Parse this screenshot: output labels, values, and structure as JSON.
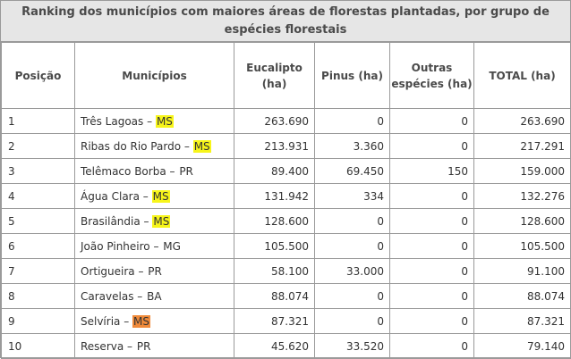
{
  "table": {
    "caption_line1": "Ranking dos municípios com maiores áreas de florestas plantadas, por grupo de",
    "caption_line2": "espécies florestais",
    "headers": {
      "posicao": "Posição",
      "municipios": "Municípios",
      "eucalipto": "Eucalipto (ha)",
      "pinus": "Pinus (ha)",
      "outras": "Outras espécies (ha)",
      "total": "TOTAL (ha)"
    },
    "highlight_colors": {
      "yellow": "#f7f51a",
      "orange": "#f08a3a"
    },
    "rows": [
      {
        "pos": "1",
        "city": "Três Lagoas",
        "sep": " – ",
        "uf": "MS",
        "highlight": "yellow",
        "eucalipto": "263.690",
        "pinus": "0",
        "outras": "0",
        "total": "263.690"
      },
      {
        "pos": "2",
        "city": "Ribas do Rio Pardo",
        "sep": " – ",
        "uf": "MS",
        "highlight": "yellow",
        "eucalipto": "213.931",
        "pinus": "3.360",
        "outras": "0",
        "total": "217.291"
      },
      {
        "pos": "3",
        "city": "Telêmaco Borba",
        "sep": " – ",
        "uf": "PR",
        "highlight": "none",
        "eucalipto": "89.400",
        "pinus": "69.450",
        "outras": "150",
        "total": "159.000"
      },
      {
        "pos": "4",
        "city": "Água Clara",
        "sep": " – ",
        "uf": "MS",
        "highlight": "yellow",
        "eucalipto": "131.942",
        "pinus": "334",
        "outras": "0",
        "total": "132.276"
      },
      {
        "pos": "5",
        "city": "Brasilândia",
        "sep": " – ",
        "uf": "MS",
        "highlight": "yellow",
        "eucalipto": "128.600",
        "pinus": "0",
        "outras": "0",
        "total": "128.600"
      },
      {
        "pos": "6",
        "city": "João Pinheiro",
        "sep": " – ",
        "uf": "MG",
        "highlight": "none",
        "eucalipto": "105.500",
        "pinus": "0",
        "outras": "0",
        "total": "105.500"
      },
      {
        "pos": "7",
        "city": "Ortigueira",
        "sep": " – ",
        "uf": "PR",
        "highlight": "none",
        "eucalipto": "58.100",
        "pinus": "33.000",
        "outras": "0",
        "total": "91.100"
      },
      {
        "pos": "8",
        "city": "Caravelas",
        "sep": " – ",
        "uf": "BA",
        "highlight": "none",
        "eucalipto": "88.074",
        "pinus": "0",
        "outras": "0",
        "total": "88.074"
      },
      {
        "pos": "9",
        "city": "Selvíria",
        "sep": " – ",
        "uf": "MS",
        "highlight": "orange",
        "eucalipto": "87.321",
        "pinus": "0",
        "outras": "0",
        "total": "87.321"
      },
      {
        "pos": "10",
        "city": "Reserva",
        "sep": " – ",
        "uf": "PR",
        "highlight": "none",
        "eucalipto": "45.620",
        "pinus": "33.520",
        "outras": "0",
        "total": "79.140"
      }
    ]
  }
}
